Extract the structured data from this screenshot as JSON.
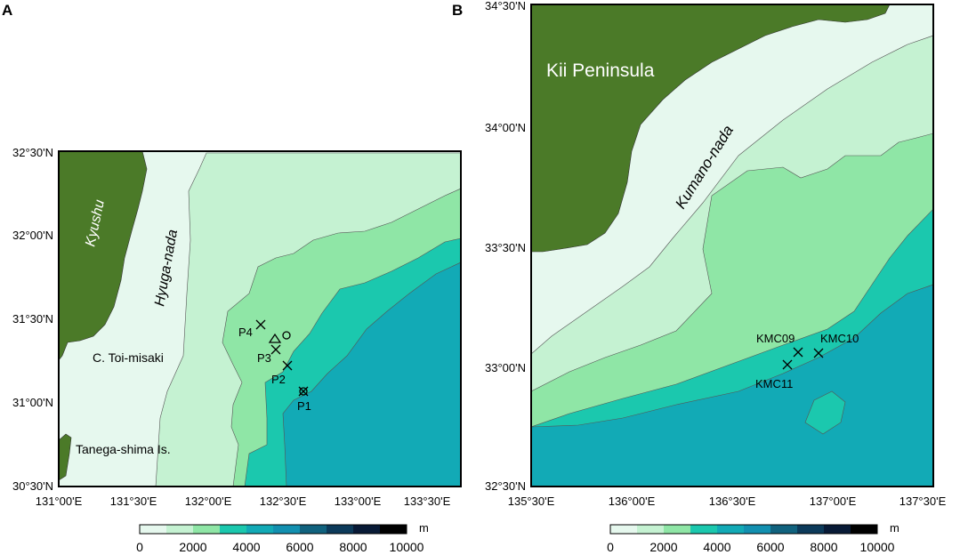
{
  "panels": [
    {
      "letter": "A",
      "lat_ticks": [
        "32°30'N",
        "32°00'N",
        "31°30'N",
        "31°00'N",
        "30°30'N"
      ],
      "lon_ticks": [
        "131°00'E",
        "131°30'E",
        "132°00'E",
        "132°30'E",
        "133°00'E",
        "133°30'E"
      ],
      "land_labels": [
        "Kyushu"
      ],
      "sea_labels": [
        "Hyuga-nada"
      ],
      "place_labels": [
        "C. Toi-misaki",
        "Tanega-shima Is."
      ],
      "sites": [
        "P1",
        "P2",
        "P3",
        "P4"
      ]
    },
    {
      "letter": "B",
      "lat_ticks": [
        "34°30'N",
        "34°00'N",
        "33°30'N",
        "33°00'N",
        "32°30'N"
      ],
      "lon_ticks": [
        "135°30'E",
        "136°00'E",
        "136°30'E",
        "137°00'E",
        "137°30'E"
      ],
      "land_labels": [
        "Kii Peninsula"
      ],
      "sea_labels": [
        "Kumano-nada"
      ],
      "place_labels": [],
      "sites": [
        "KMC09",
        "KMC10",
        "KMC11"
      ]
    }
  ],
  "depth_scale": {
    "unit": "m",
    "ticks": [
      "0",
      "2000",
      "4000",
      "6000",
      "8000",
      "10000"
    ],
    "colors": [
      "#e6f8ee",
      "#c5f2d2",
      "#8fe6a6",
      "#1bc8ae",
      "#12aab6",
      "#1290b0",
      "#10627e",
      "#0c3a5a",
      "#081a36",
      "#000000"
    ]
  },
  "colors": {
    "land": "#4b7a28",
    "depth_0_1000": "#e6f8ee",
    "depth_1000_2000": "#c5f2d2",
    "depth_2000_3000": "#8fe6a6",
    "depth_3000_4000": "#1bc8ae",
    "depth_4000_5000": "#12aab6"
  }
}
